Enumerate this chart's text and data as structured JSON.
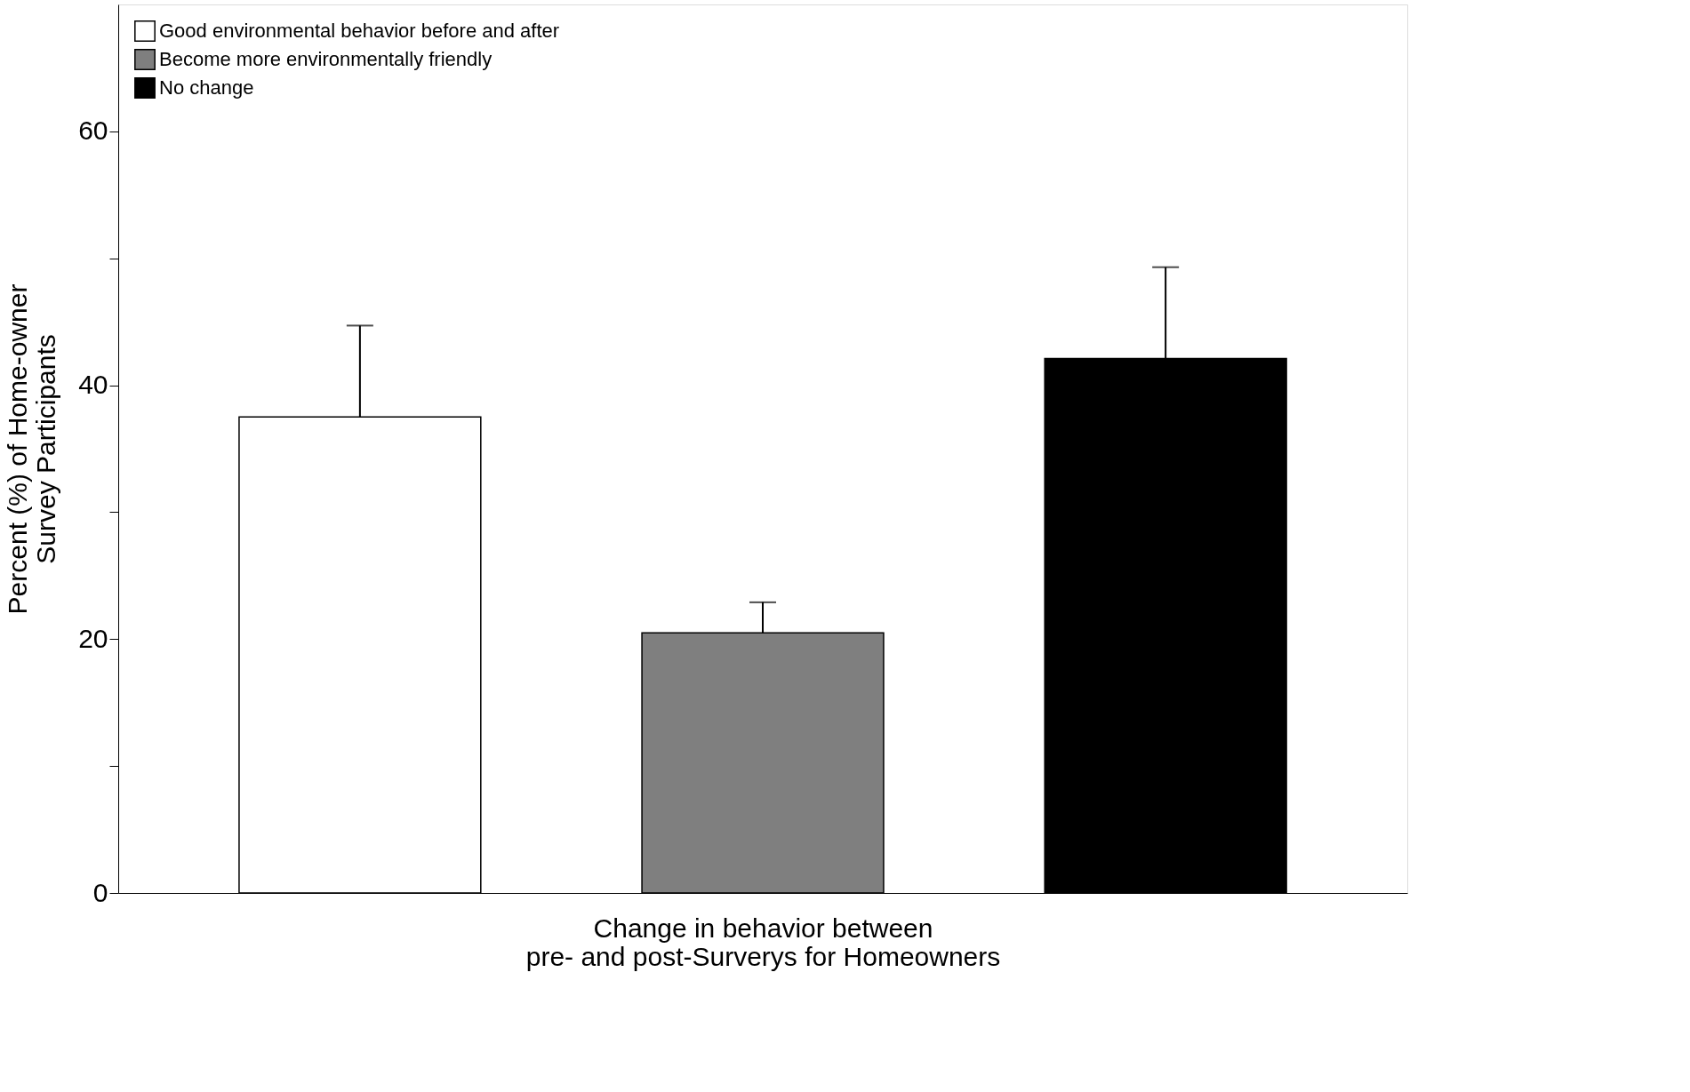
{
  "chart_data": {
    "type": "bar",
    "xlabel": "Change in behavior between\npre- and post-Surverys for Homeowners",
    "ylabel": "Percent (%) of Home-owner\nSurvey Participants",
    "categories": [
      null,
      null,
      null
    ],
    "series": [
      {
        "name": "Good environmental behavior before and after",
        "color": "#ffffff",
        "values": [
          37.5,
          null,
          null
        ],
        "errors": [
          [
            37.5,
            44.7
          ],
          null,
          null
        ]
      },
      {
        "name": "Become more environmentally friendly",
        "color": "#7f7f7f",
        "values": [
          null,
          20.5,
          null
        ],
        "errors": [
          null,
          [
            20.5,
            22.9
          ],
          null
        ]
      },
      {
        "name": "No change",
        "color": "#000000",
        "values": [
          null,
          null,
          42.1
        ],
        "errors": [
          null,
          null,
          [
            42.1,
            49.3
          ]
        ]
      }
    ],
    "ylim": [
      0,
      70
    ],
    "yticks": [
      0,
      {
        "value": 10,
        "label": null
      },
      20,
      {
        "value": 30,
        "label": null
      },
      40,
      {
        "value": 50,
        "label": null
      },
      60
    ],
    "legend": "top left",
    "tick_labels": "y",
    "grid": false
  }
}
